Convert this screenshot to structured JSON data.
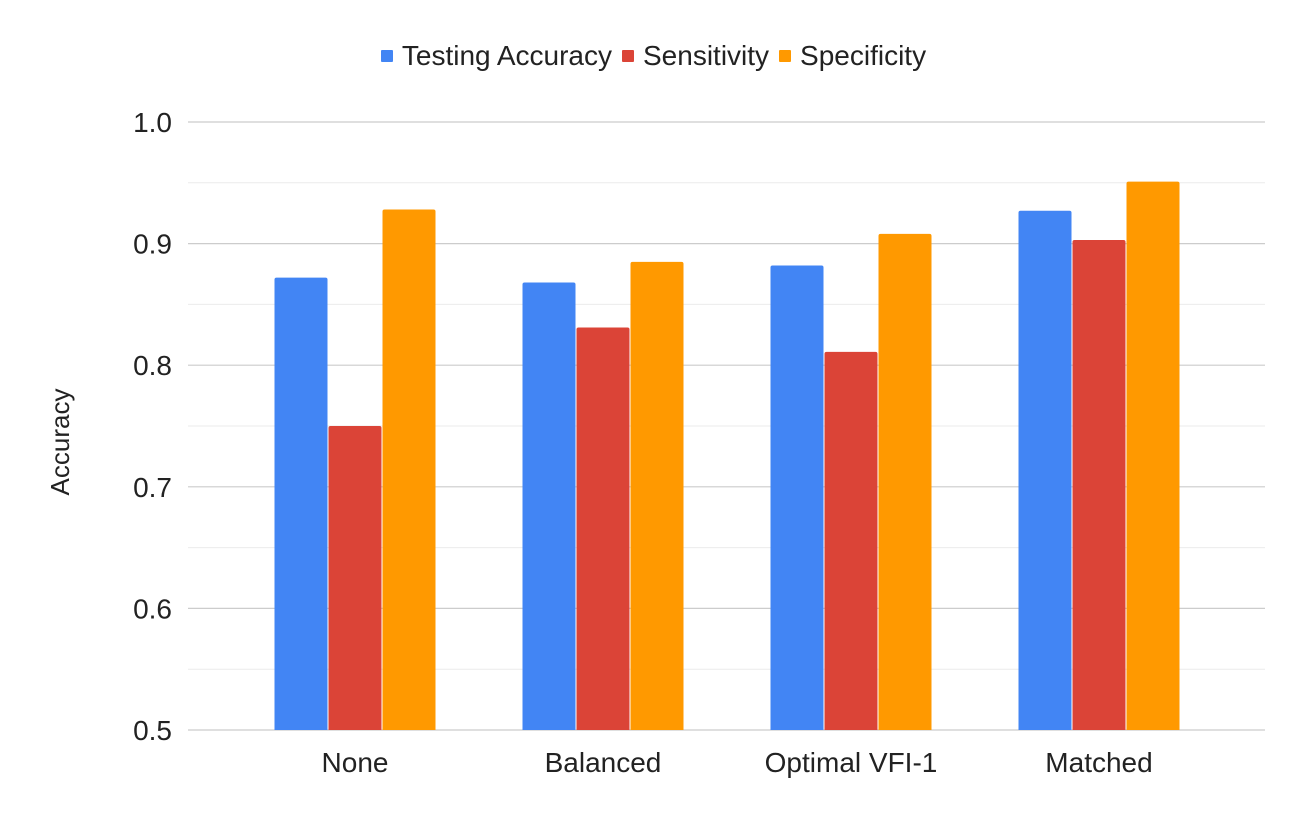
{
  "chart_data": {
    "type": "bar",
    "title": "",
    "xlabel": "",
    "ylabel": "Accuracy",
    "ylim": [
      0.5,
      1.0
    ],
    "yticks": [
      "0.5",
      "0.6",
      "0.7",
      "0.8",
      "0.9",
      "1.0"
    ],
    "minor_grid_step": 0.05,
    "grid": true,
    "legend_position": "top-center",
    "categories": [
      "None",
      "Balanced",
      "Optimal VFI-1",
      "Matched"
    ],
    "series": [
      {
        "name": "Testing Accuracy",
        "color": "#4285F4",
        "values": [
          0.872,
          0.868,
          0.882,
          0.927
        ]
      },
      {
        "name": "Sensitivity",
        "color": "#DB4437",
        "values": [
          0.75,
          0.831,
          0.811,
          0.903
        ]
      },
      {
        "name": "Specificity",
        "color": "#FF9900",
        "values": [
          0.928,
          0.885,
          0.908,
          0.951
        ]
      }
    ]
  }
}
